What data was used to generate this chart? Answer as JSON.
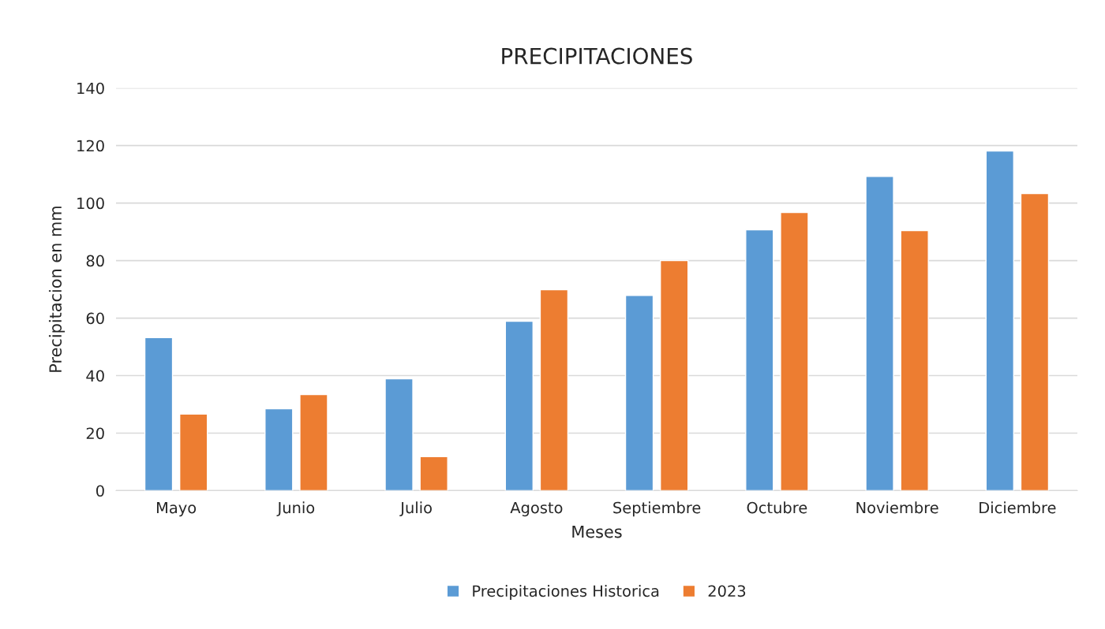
{
  "chart_data": {
    "type": "bar",
    "title": "PRECIPITACIONES",
    "xlabel": "Meses",
    "ylabel": "Precipitacion en mm",
    "categories": [
      "Mayo",
      "Junio",
      "Julio",
      "Agosto",
      "Septiembre",
      "Octubre",
      "Noviembre",
      "Diciembre"
    ],
    "series": [
      {
        "name": "Precipitaciones Historica",
        "color": "#5b9bd5",
        "values": [
          53.2,
          28.5,
          38.9,
          58.9,
          67.9,
          90.7,
          109.3,
          118.1
        ]
      },
      {
        "name": "2023",
        "color": "#ed7d31",
        "values": [
          26.6,
          33.4,
          11.8,
          69.9,
          80.0,
          96.7,
          90.4,
          103.3
        ]
      }
    ],
    "ylim": [
      0,
      140
    ],
    "yticks": [
      0,
      20,
      40,
      60,
      80,
      100,
      120,
      140
    ],
    "grid": "y",
    "legend": "bottom"
  }
}
